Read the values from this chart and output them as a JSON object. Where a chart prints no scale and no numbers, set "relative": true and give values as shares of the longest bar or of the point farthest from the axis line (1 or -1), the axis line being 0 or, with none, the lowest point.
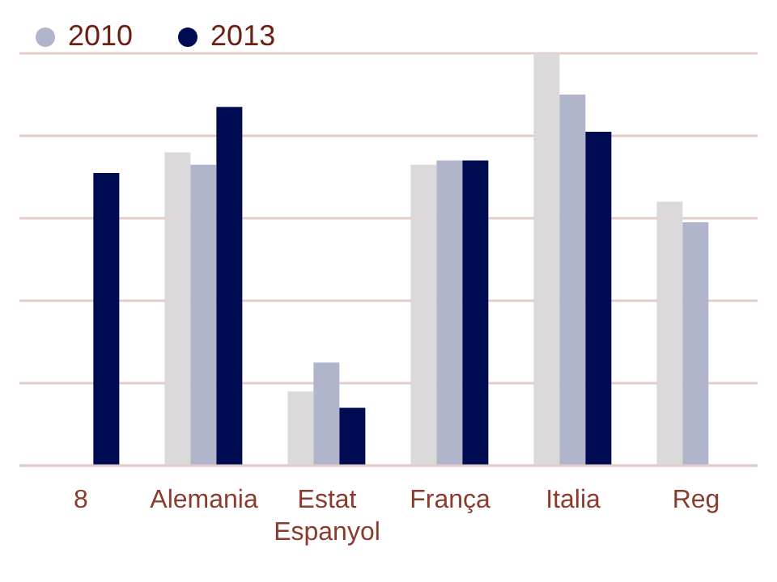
{
  "chart_data": {
    "type": "bar",
    "relative": true,
    "categories": [
      "8",
      "Alemania",
      "Estat Espanyol",
      "França",
      "Italia",
      "Reg"
    ],
    "series": [
      {
        "color": "#dcd9da",
        "values": [
          null,
          0.76,
          0.18,
          0.73,
          1.0,
          0.64
        ]
      },
      {
        "name": "2010",
        "color": "#b0b5cc",
        "values": [
          null,
          0.73,
          0.25,
          0.74,
          0.9,
          0.59
        ]
      },
      {
        "name": "2013",
        "color": "#000c52",
        "values": [
          0.71,
          0.87,
          0.14,
          0.74,
          0.81,
          null
        ]
      }
    ],
    "grid": "y",
    "legend": "top left"
  }
}
